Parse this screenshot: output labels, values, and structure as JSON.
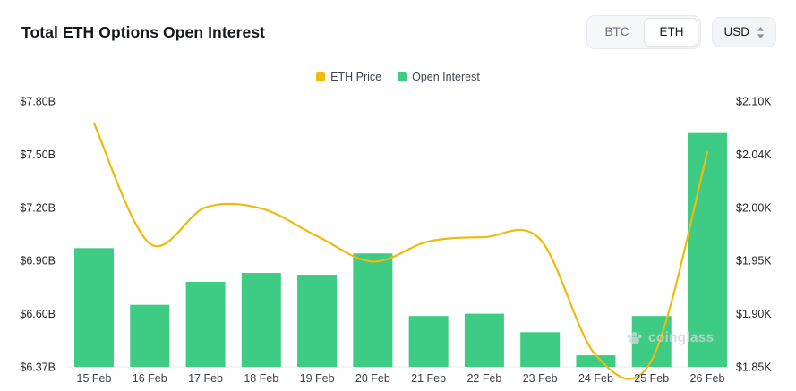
{
  "header": {
    "title": "Total ETH Options Open Interest",
    "currency_toggle": {
      "options": [
        "BTC",
        "ETH"
      ],
      "selected": "ETH"
    },
    "unit_selector": {
      "label": "USD"
    }
  },
  "legend": [
    {
      "label": "ETH Price",
      "color": "#F0B90B"
    },
    {
      "label": "Open Interest",
      "color": "#3ECB83"
    }
  ],
  "watermark": "coinglass",
  "chart_data": {
    "type": "combo",
    "title": "Total ETH Options Open Interest",
    "categories": [
      "15 Feb",
      "16 Feb",
      "17 Feb",
      "18 Feb",
      "19 Feb",
      "20 Feb",
      "21 Feb",
      "22 Feb",
      "23 Feb",
      "24 Feb",
      "25 Feb",
      "26 Feb"
    ],
    "series": [
      {
        "name": "Open Interest",
        "type": "bar",
        "axis": "left",
        "unit": "B",
        "color": "#3ECB83",
        "values": [
          6.97,
          6.65,
          6.78,
          6.83,
          6.82,
          6.94,
          6.59,
          6.6,
          6.52,
          6.42,
          6.59,
          7.62
        ]
      },
      {
        "name": "ETH Price",
        "type": "line",
        "axis": "right",
        "unit": "K",
        "color": "#F0B90B",
        "values": [
          2.075,
          1.966,
          2.0,
          1.999,
          1.973,
          1.949,
          1.968,
          1.972,
          1.97,
          1.861,
          1.856,
          2.042
        ]
      }
    ],
    "left_axis": {
      "tick_labels": [
        "$7.80B",
        "$7.50B",
        "$7.20B",
        "$6.90B",
        "$6.60B",
        "$6.37B"
      ],
      "tick_values": [
        7.8,
        7.5,
        7.2,
        6.9,
        6.6,
        6.37
      ],
      "range": [
        6.37,
        7.8
      ]
    },
    "right_axis": {
      "tick_labels": [
        "$2.10K",
        "$2.04K",
        "$2.00K",
        "$1.95K",
        "$1.90K",
        "$1.85K"
      ],
      "tick_values": [
        2.1,
        2.04,
        2.0,
        1.95,
        1.9,
        1.85
      ],
      "range": [
        1.85,
        2.1
      ]
    },
    "grid": false,
    "legend_position": "top-center"
  }
}
